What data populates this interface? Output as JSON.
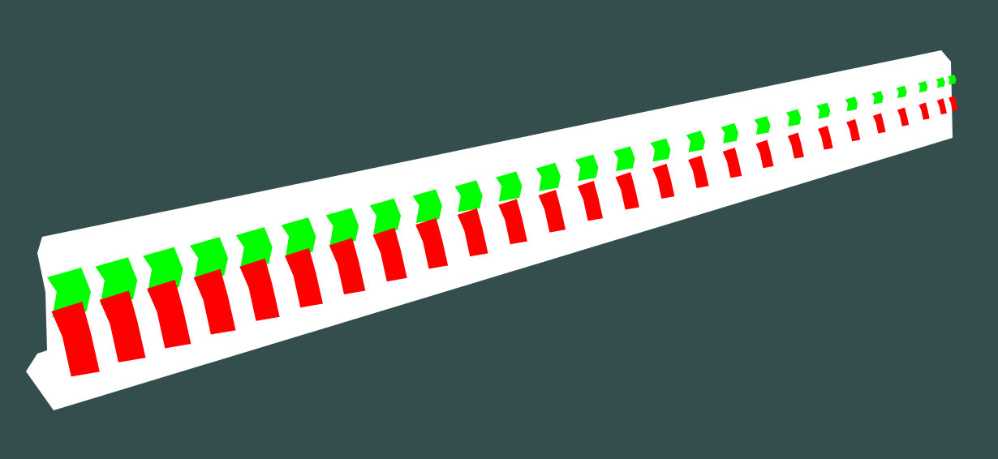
{
  "scene": {
    "description_hidden": "",
    "colors": {
      "background": "#344d4d",
      "bar": "#ffffff",
      "green_blocks": "#00ff00",
      "red_blocks": "#ff0000"
    },
    "objects": [
      {
        "name": "white-bar",
        "color": "#ffffff"
      },
      {
        "name": "green-chevron-row",
        "color": "#00ff00",
        "count": 26
      },
      {
        "name": "red-chevron-row",
        "color": "#ff0000",
        "count": 26
      }
    ]
  }
}
